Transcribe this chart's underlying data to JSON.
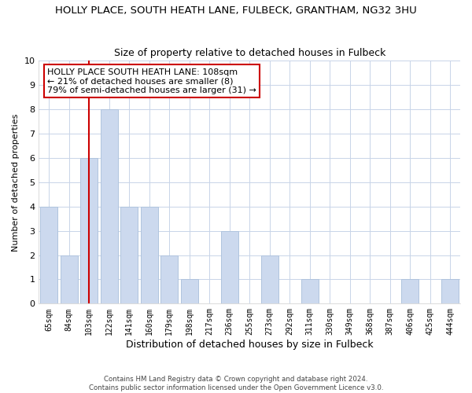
{
  "title": "HOLLY PLACE, SOUTH HEATH LANE, FULBECK, GRANTHAM, NG32 3HU",
  "subtitle": "Size of property relative to detached houses in Fulbeck",
  "xlabel": "Distribution of detached houses by size in Fulbeck",
  "ylabel": "Number of detached properties",
  "bar_labels": [
    "65sqm",
    "84sqm",
    "103sqm",
    "122sqm",
    "141sqm",
    "160sqm",
    "179sqm",
    "198sqm",
    "217sqm",
    "236sqm",
    "255sqm",
    "273sqm",
    "292sqm",
    "311sqm",
    "330sqm",
    "349sqm",
    "368sqm",
    "387sqm",
    "406sqm",
    "425sqm",
    "444sqm"
  ],
  "bar_values": [
    4,
    2,
    6,
    8,
    4,
    4,
    2,
    1,
    0,
    3,
    0,
    2,
    0,
    1,
    0,
    0,
    0,
    0,
    1,
    0,
    1
  ],
  "bar_color": "#ccd9ee",
  "bar_edge_color": "#b0c4de",
  "highlight_index": 2,
  "highlight_line_color": "#cc0000",
  "ylim": [
    0,
    10
  ],
  "yticks": [
    0,
    1,
    2,
    3,
    4,
    5,
    6,
    7,
    8,
    9,
    10
  ],
  "annotation_title": "HOLLY PLACE SOUTH HEATH LANE: 108sqm",
  "annotation_line1": "← 21% of detached houses are smaller (8)",
  "annotation_line2": "79% of semi-detached houses are larger (31) →",
  "footer_line1": "Contains HM Land Registry data © Crown copyright and database right 2024.",
  "footer_line2": "Contains public sector information licensed under the Open Government Licence v3.0.",
  "background_color": "#ffffff",
  "grid_color": "#c8d4e8"
}
